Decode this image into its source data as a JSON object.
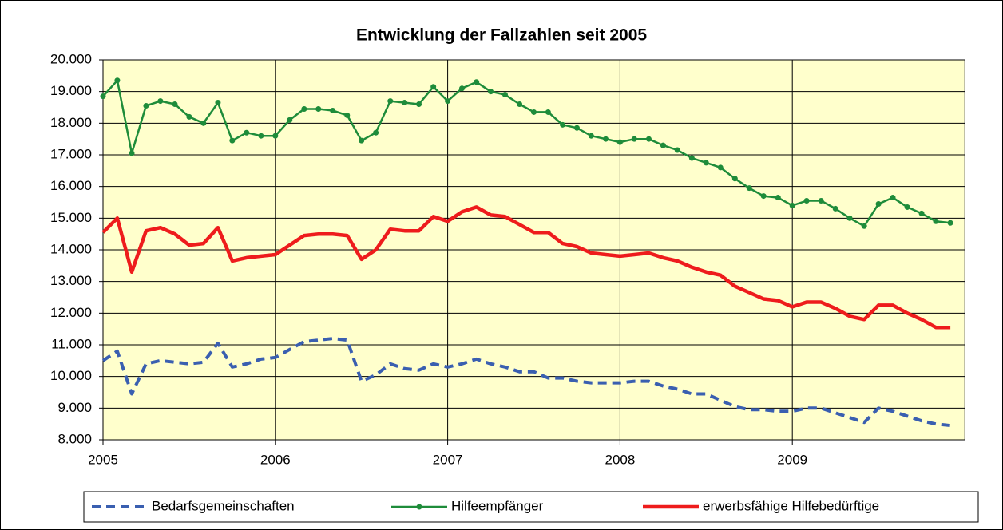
{
  "chart_data": {
    "type": "line",
    "title": "Entwicklung der Fallzahlen seit 2005",
    "x": [
      2005.0,
      2005.083,
      2005.167,
      2005.25,
      2005.333,
      2005.417,
      2005.5,
      2005.583,
      2005.667,
      2005.75,
      2005.833,
      2005.917,
      2006.0,
      2006.083,
      2006.167,
      2006.25,
      2006.333,
      2006.417,
      2006.5,
      2006.583,
      2006.667,
      2006.75,
      2006.833,
      2006.917,
      2007.0,
      2007.083,
      2007.167,
      2007.25,
      2007.333,
      2007.417,
      2007.5,
      2007.583,
      2007.667,
      2007.75,
      2007.833,
      2007.917,
      2008.0,
      2008.083,
      2008.167,
      2008.25,
      2008.333,
      2008.417,
      2008.5,
      2008.583,
      2008.667,
      2008.75,
      2008.833,
      2008.917,
      2009.0,
      2009.083,
      2009.167,
      2009.25,
      2009.333,
      2009.417,
      2009.5,
      2009.583,
      2009.667,
      2009.75,
      2009.833,
      2009.917
    ],
    "series": [
      {
        "name": "Bedarfsgemeinschaften",
        "color": "#3a5fb0",
        "dash": true,
        "marker": false,
        "values": [
          10500,
          10800,
          9450,
          10400,
          10500,
          10450,
          10400,
          10450,
          11050,
          10300,
          10400,
          10550,
          10600,
          10850,
          11100,
          11150,
          11200,
          11150,
          9850,
          10050,
          10400,
          10250,
          10200,
          10400,
          10300,
          10400,
          10550,
          10400,
          10300,
          10150,
          10150,
          9950,
          9950,
          9850,
          9800,
          9800,
          9800,
          9850,
          9850,
          9700,
          9600,
          9450,
          9450,
          9250,
          9050,
          8950,
          8950,
          8900,
          8900,
          9000,
          9000,
          8850,
          8700,
          8550,
          9000,
          8900,
          8750,
          8600,
          8500,
          8450
        ]
      },
      {
        "name": "Hilfeempfänger",
        "color": "#1e8c3a",
        "dash": false,
        "marker": true,
        "values": [
          18850,
          19350,
          17050,
          18550,
          18700,
          18600,
          18200,
          18000,
          18650,
          17450,
          17700,
          17600,
          17600,
          18100,
          18450,
          18450,
          18400,
          18250,
          17450,
          17700,
          18700,
          18650,
          18600,
          19150,
          18700,
          19100,
          19300,
          19000,
          18900,
          18600,
          18350,
          18350,
          17950,
          17850,
          17600,
          17500,
          17400,
          17500,
          17500,
          17300,
          17150,
          16900,
          16750,
          16600,
          16250,
          15950,
          15700,
          15650,
          15400,
          15550,
          15550,
          15300,
          15000,
          14750,
          15450,
          15650,
          15350,
          15150,
          14900,
          14850
        ]
      },
      {
        "name": "erwerbsfähige Hilfebedürftige",
        "color": "#ee1c1c",
        "dash": false,
        "marker": false,
        "values": [
          14550,
          15000,
          13300,
          14600,
          14700,
          14500,
          14150,
          14200,
          14700,
          13650,
          13750,
          13800,
          13850,
          14150,
          14450,
          14500,
          14500,
          14450,
          13700,
          14000,
          14650,
          14600,
          14600,
          15050,
          14900,
          15200,
          15350,
          15100,
          15050,
          14800,
          14550,
          14550,
          14200,
          14100,
          13900,
          13850,
          13800,
          13850,
          13900,
          13750,
          13650,
          13450,
          13300,
          13200,
          12850,
          12650,
          12450,
          12400,
          12200,
          12350,
          12350,
          12150,
          11900,
          11800,
          12250,
          12250,
          12000,
          11800,
          11550,
          11550
        ]
      }
    ],
    "xlim": [
      2005,
      2010
    ],
    "xticks": [
      2005,
      2006,
      2007,
      2008,
      2009
    ],
    "ylim": [
      8000,
      20000
    ],
    "yticks": [
      {
        "value": 8000,
        "label": "8.000"
      },
      {
        "value": 9000,
        "label": "9.000"
      },
      {
        "value": 10000,
        "label": "10.000"
      },
      {
        "value": 11000,
        "label": "11.000"
      },
      {
        "value": 12000,
        "label": "12.000"
      },
      {
        "value": 13000,
        "label": "13.000"
      },
      {
        "value": 14000,
        "label": "14.000"
      },
      {
        "value": 15000,
        "label": "15.000"
      },
      {
        "value": 16000,
        "label": "16.000"
      },
      {
        "value": 17000,
        "label": "17.000"
      },
      {
        "value": 18000,
        "label": "18.000"
      },
      {
        "value": 19000,
        "label": "19.000"
      },
      {
        "value": 20000,
        "label": "20.000"
      }
    ],
    "grid": true,
    "legend": "bottom",
    "plot_background": "#ffffcc"
  }
}
